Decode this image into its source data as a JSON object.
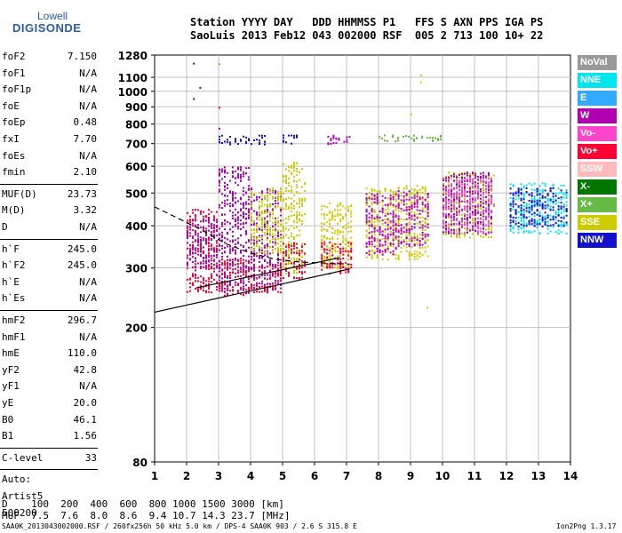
{
  "logo": {
    "line1": "Lowell",
    "line2": "DIGISONDE"
  },
  "header": {
    "line1": "Station YYYY DAY   DDD HHMMSS P1   FFS S AXN PPS IGA PS",
    "line2": "SaoLuis 2013 Feb12 043 002000 RSF  005 2 713 100 10+ 22"
  },
  "params_a": [
    {
      "k": "foF2",
      "v": "7.150"
    },
    {
      "k": "foF1",
      "v": "N/A"
    },
    {
      "k": "foF1p",
      "v": "N/A"
    },
    {
      "k": "foE",
      "v": "N/A"
    },
    {
      "k": "foEp",
      "v": "0.48"
    },
    {
      "k": "fxI",
      "v": "7.70"
    },
    {
      "k": "foEs",
      "v": "N/A"
    },
    {
      "k": "fmin",
      "v": "2.10"
    }
  ],
  "params_b": [
    {
      "k": "MUF(D)",
      "v": "23.73"
    },
    {
      "k": "M(D)",
      "v": "3.32"
    },
    {
      "k": "D",
      "v": "N/A"
    }
  ],
  "params_c": [
    {
      "k": "h`F",
      "v": "245.0"
    },
    {
      "k": "h`F2",
      "v": "245.0"
    },
    {
      "k": "h`E",
      "v": "N/A"
    },
    {
      "k": "h`Es",
      "v": "N/A"
    }
  ],
  "params_d": [
    {
      "k": "hmF2",
      "v": "296.7"
    },
    {
      "k": "hmF1",
      "v": "N/A"
    },
    {
      "k": "hmE",
      "v": "110.0"
    },
    {
      "k": "yF2",
      "v": "42.8"
    },
    {
      "k": "yF1",
      "v": "N/A"
    },
    {
      "k": "yE",
      "v": "20.0"
    },
    {
      "k": "B0",
      "v": "46.1"
    },
    {
      "k": "B1",
      "v": "1.56"
    }
  ],
  "clevel": {
    "k": "C-level",
    "v": "33"
  },
  "auto": {
    "l1": "Auto:",
    "l2": "Artist5",
    "l3": "500200"
  },
  "bottom": {
    "line1": "D    100  200  400  600  800 1000 1500 3000 [km]",
    "line2": "MUF  7.5  7.6  8.0  8.6  9.4 10.7 14.3 23.7 [MHz]"
  },
  "footer": {
    "left": "SAA0K_2013043002000.RSF / 260fx256h 50 kHz 5.0 km / DPS-4 SAA0K 903 / 2.6 S 315.8 E",
    "right": "Ion2Png 1.3.17"
  },
  "legend": [
    {
      "label": "NoVal",
      "color": "#999999"
    },
    {
      "label": "NNE",
      "color": "#00e5ee"
    },
    {
      "label": "E",
      "color": "#33aaff"
    },
    {
      "label": "W",
      "color": "#b000b0"
    },
    {
      "label": "Vo-",
      "color": "#ff44cc"
    },
    {
      "label": "Vo+",
      "color": "#ff0033"
    },
    {
      "label": "SSW",
      "color": "#ffbbbb"
    },
    {
      "label": "X-",
      "color": "#007700"
    },
    {
      "label": "X+",
      "color": "#66bb44"
    },
    {
      "label": "SSE",
      "color": "#cccc00"
    },
    {
      "label": "NNW",
      "color": "#1111cc"
    }
  ],
  "chart_data": {
    "type": "scatter",
    "x_range": [
      1,
      14
    ],
    "y_scale": "log",
    "y_range": [
      80,
      1280
    ],
    "x_ticks": [
      1,
      2,
      3,
      4,
      5,
      6,
      7,
      8,
      9,
      10,
      11,
      12,
      13,
      14
    ],
    "y_ticks": [
      80,
      200,
      300,
      400,
      500,
      600,
      700,
      800,
      900,
      1000,
      1100,
      1280
    ],
    "grid": true,
    "legend_placement": "right",
    "clusters": [
      {
        "x": [
          2.0,
          3.0
        ],
        "y": [
          255,
          450
        ],
        "color": "#ff0033"
      },
      {
        "x": [
          2.0,
          3.0
        ],
        "y": [
          300,
          420
        ],
        "color": "#b000b0"
      },
      {
        "x": [
          3.0,
          4.0
        ],
        "y": [
          250,
          600
        ],
        "color": "#b000b0"
      },
      {
        "x": [
          3.0,
          4.0
        ],
        "y": [
          250,
          320
        ],
        "color": "#ff0033"
      },
      {
        "x": [
          4.0,
          5.0
        ],
        "y": [
          260,
          520
        ],
        "color": "#b000b0"
      },
      {
        "x": [
          4.0,
          5.0
        ],
        "y": [
          255,
          310
        ],
        "color": "#ff0033"
      },
      {
        "x": [
          4.0,
          5.0
        ],
        "y": [
          330,
          520
        ],
        "color": "#cccc00"
      },
      {
        "x": [
          5.0,
          5.7
        ],
        "y": [
          290,
          620
        ],
        "color": "#cccc00"
      },
      {
        "x": [
          5.0,
          5.7
        ],
        "y": [
          280,
          360
        ],
        "color": "#ff0033"
      },
      {
        "x": [
          6.2,
          7.2
        ],
        "y": [
          300,
          470
        ],
        "color": "#cccc00"
      },
      {
        "x": [
          6.2,
          7.2
        ],
        "y": [
          290,
          360
        ],
        "color": "#ff0033"
      },
      {
        "x": [
          7.6,
          8.6
        ],
        "y": [
          320,
          520
        ],
        "color": "#cccc00"
      },
      {
        "x": [
          7.6,
          8.6
        ],
        "y": [
          330,
          500
        ],
        "color": "#b000b0"
      },
      {
        "x": [
          8.6,
          9.6
        ],
        "y": [
          320,
          530
        ],
        "color": "#cccc00"
      },
      {
        "x": [
          8.6,
          9.6
        ],
        "y": [
          350,
          510
        ],
        "color": "#b000b0"
      },
      {
        "x": [
          10.0,
          11.6
        ],
        "y": [
          370,
          580
        ],
        "color": "#cccc00"
      },
      {
        "x": [
          10.0,
          11.6
        ],
        "y": [
          380,
          580
        ],
        "color": "#b000b0"
      },
      {
        "x": [
          10.0,
          11.6
        ],
        "y": [
          380,
          560
        ],
        "color": "#ff44cc"
      },
      {
        "x": [
          12.1,
          13.9
        ],
        "y": [
          380,
          540
        ],
        "color": "#00e5ee"
      },
      {
        "x": [
          12.1,
          13.9
        ],
        "y": [
          400,
          520
        ],
        "color": "#1111cc"
      },
      {
        "x": [
          3.0,
          4.5
        ],
        "y": [
          700,
          745
        ],
        "color": "#1111cc"
      },
      {
        "x": [
          5.0,
          5.5
        ],
        "y": [
          700,
          745
        ],
        "color": "#1111cc"
      },
      {
        "x": [
          6.4,
          7.2
        ],
        "y": [
          700,
          745
        ],
        "color": "#b000b0"
      },
      {
        "x": [
          8.0,
          10.0
        ],
        "y": [
          715,
          745
        ],
        "color": "#66bb44"
      }
    ],
    "isolated_points": [
      {
        "x": 2.2,
        "y": 1215,
        "color": "#1111cc"
      },
      {
        "x": 2.2,
        "y": 955,
        "color": "#1111cc"
      },
      {
        "x": 2.4,
        "y": 1030,
        "color": "#1111cc"
      },
      {
        "x": 3.0,
        "y": 1210,
        "color": "#66bb44"
      },
      {
        "x": 3.0,
        "y": 900,
        "color": "#ff0033"
      },
      {
        "x": 3.0,
        "y": 780,
        "color": "#b000b0"
      },
      {
        "x": 9.3,
        "y": 1120,
        "color": "#cccc00"
      },
      {
        "x": 9.3,
        "y": 1070,
        "color": "#cccc00"
      },
      {
        "x": 9.0,
        "y": 860,
        "color": "#cccc00"
      },
      {
        "x": 9.5,
        "y": 230,
        "color": "#cccc00"
      }
    ],
    "curves": [
      {
        "style": "solid",
        "x": [
          1,
          7.1
        ],
        "y": [
          222,
          298
        ]
      },
      {
        "style": "solid",
        "x": [
          2.3,
          6.8
        ],
        "y": [
          262,
          322
        ]
      },
      {
        "style": "dashed",
        "x": [
          1,
          2.4,
          3.2,
          4.0,
          4.8,
          5.6,
          6.4,
          7.1
        ],
        "y": [
          455,
          392,
          355,
          332,
          318,
          312,
          310,
          308
        ]
      }
    ]
  }
}
